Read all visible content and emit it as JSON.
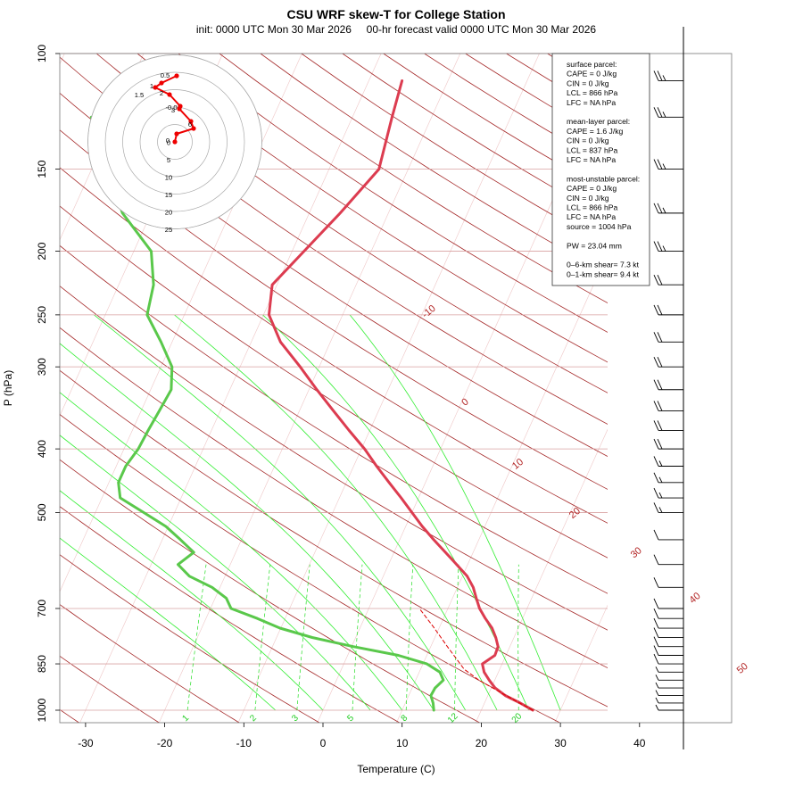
{
  "chart_data": {
    "type": "line",
    "chart_kind": "skew-T log-P",
    "title": "CSU WRF skew-T for College Station",
    "subtitle": "init: 0000 UTC Mon 30 Mar 2026     00-hr forecast valid 0000 UTC Mon 30 Mar 2026",
    "xlabel": "Temperature (C)",
    "ylabel": "P (hPa)",
    "x_ticks": [
      -30,
      -20,
      -10,
      0,
      10,
      20,
      30,
      40
    ],
    "y_ticks": [
      100,
      150,
      200,
      250,
      300,
      400,
      500,
      700,
      850,
      1000
    ],
    "y_scale": "log",
    "xlim": [
      -33,
      52
    ],
    "ylim": [
      1050,
      100
    ],
    "grid": true,
    "isotherm_labels": [
      -10,
      0,
      10,
      20,
      30,
      40,
      50
    ],
    "mixing_ratio_labels": [
      1,
      2,
      3,
      5,
      8,
      12,
      20
    ],
    "series": [
      {
        "name": "temperature",
        "color": "#dc3c50",
        "points": [
          [
            1000,
            26.5
          ],
          [
            975,
            24.5
          ],
          [
            950,
            22.2
          ],
          [
            925,
            20.5
          ],
          [
            900,
            19.3
          ],
          [
            875,
            18.2
          ],
          [
            850,
            17.5
          ],
          [
            825,
            18.6
          ],
          [
            800,
            18.5
          ],
          [
            775,
            17.7
          ],
          [
            750,
            16.7
          ],
          [
            725,
            15.3
          ],
          [
            700,
            14.0
          ],
          [
            675,
            13.0
          ],
          [
            650,
            12.0
          ],
          [
            625,
            10.6
          ],
          [
            600,
            8.6
          ],
          [
            575,
            6.5
          ],
          [
            550,
            4.3
          ],
          [
            525,
            2.1
          ],
          [
            500,
            0.0
          ],
          [
            475,
            -2.2
          ],
          [
            450,
            -4.6
          ],
          [
            425,
            -7.1
          ],
          [
            400,
            -9.6
          ],
          [
            375,
            -12.6
          ],
          [
            350,
            -15.7
          ],
          [
            325,
            -19.0
          ],
          [
            300,
            -22.4
          ],
          [
            275,
            -26.3
          ],
          [
            250,
            -29.3
          ],
          [
            225,
            -30.6
          ],
          [
            200,
            -28.5
          ],
          [
            175,
            -26.1
          ],
          [
            150,
            -23.7
          ],
          [
            125,
            -25.0
          ],
          [
            110,
            -25.8
          ]
        ]
      },
      {
        "name": "dewpoint",
        "color": "#5ac84b",
        "points": [
          [
            1000,
            14.0
          ],
          [
            975,
            13.5
          ],
          [
            950,
            12.8
          ],
          [
            925,
            12.9
          ],
          [
            900,
            13.5
          ],
          [
            875,
            12.6
          ],
          [
            850,
            10.5
          ],
          [
            825,
            6.4
          ],
          [
            800,
            0.2
          ],
          [
            775,
            -5.5
          ],
          [
            750,
            -10.1
          ],
          [
            725,
            -13.5
          ],
          [
            700,
            -17.4
          ],
          [
            675,
            -18.6
          ],
          [
            650,
            -21.0
          ],
          [
            625,
            -24.5
          ],
          [
            600,
            -26.6
          ],
          [
            575,
            -25.3
          ],
          [
            550,
            -27.7
          ],
          [
            525,
            -30.3
          ],
          [
            500,
            -33.9
          ],
          [
            475,
            -37.7
          ],
          [
            450,
            -38.8
          ],
          [
            425,
            -38.8
          ],
          [
            400,
            -38.2
          ],
          [
            375,
            -38.0
          ],
          [
            350,
            -37.7
          ],
          [
            325,
            -37.4
          ],
          [
            300,
            -38.6
          ],
          [
            275,
            -41.4
          ],
          [
            250,
            -44.7
          ],
          [
            225,
            -45.6
          ],
          [
            200,
            -47.8
          ],
          [
            175,
            -53.6
          ],
          [
            150,
            -58.0
          ],
          [
            125,
            -63.0
          ]
        ]
      },
      {
        "name": "parcel",
        "color": "#dc0000",
        "style": "dashed",
        "points": [
          [
            1000,
            26.5
          ],
          [
            950,
            22.3
          ],
          [
            900,
            18.0
          ],
          [
            866,
            15.5
          ],
          [
            850,
            14.7
          ],
          [
            800,
            12.1
          ],
          [
            750,
            9.4
          ],
          [
            700,
            6.4
          ]
        ]
      }
    ],
    "hodograph": {
      "ring_labels": [
        0,
        5,
        10,
        15,
        20,
        25
      ],
      "point_labels": [
        "0",
        "0.5",
        "1",
        "1.5",
        "2",
        "3",
        "6",
        "-0.0"
      ],
      "color": "#ee0000"
    },
    "wind_barbs_kt": [
      [
        1000,
        5
      ],
      [
        975,
        5
      ],
      [
        950,
        5
      ],
      [
        925,
        5
      ],
      [
        900,
        5
      ],
      [
        875,
        5
      ],
      [
        850,
        10
      ],
      [
        825,
        10
      ],
      [
        800,
        10
      ],
      [
        775,
        10
      ],
      [
        750,
        10
      ],
      [
        725,
        10
      ],
      [
        700,
        10
      ],
      [
        650,
        10
      ],
      [
        600,
        10
      ],
      [
        550,
        10
      ],
      [
        500,
        15
      ],
      [
        475,
        15
      ],
      [
        450,
        15
      ],
      [
        425,
        15
      ],
      [
        400,
        20
      ],
      [
        375,
        20
      ],
      [
        350,
        20
      ],
      [
        325,
        20
      ],
      [
        300,
        20
      ],
      [
        275,
        20
      ],
      [
        250,
        20
      ],
      [
        225,
        20
      ],
      [
        200,
        25
      ],
      [
        175,
        25
      ],
      [
        150,
        25
      ],
      [
        125,
        25
      ],
      [
        110,
        25
      ]
    ]
  },
  "info_box": {
    "lines": [
      "surface parcel:",
      "CAPE = 0 J/kg",
      "CIN = 0 J/kg",
      "LCL = 866 hPa",
      "LFC = NA hPa",
      "",
      "mean-layer parcel:",
      "CAPE = 1.6 J/kg",
      "CIN = 0 J/kg",
      "LCL = 837 hPa",
      "LFC = NA hPa",
      "",
      "most-unstable parcel:",
      "CAPE = 0 J/kg",
      "CIN = 0 J/kg",
      "LCL = 866 hPa",
      "LFC = NA hPa",
      "source = 1004 hPa",
      "",
      "PW =  23.04 mm",
      "",
      "0–6-km shear= 7.3 kt",
      "0–1-km shear= 9.4 kt"
    ]
  }
}
